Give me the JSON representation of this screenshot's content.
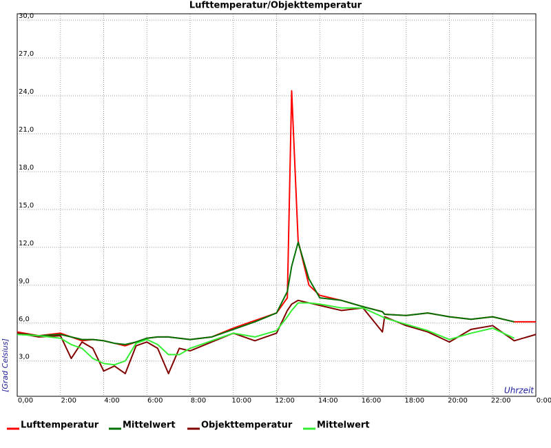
{
  "chart_data": {
    "type": "line",
    "title": "Lufttemperatur/Objekttemperatur",
    "x_label": "Uhrzeit",
    "y_label": "[Grad Celsius]",
    "x": [
      0,
      1,
      2,
      2.5,
      3,
      3.5,
      4,
      4.5,
      5,
      5.5,
      6,
      6.5,
      7,
      7.5,
      8,
      9,
      10,
      11,
      12,
      12.5,
      12.7,
      13,
      13.5,
      14,
      15,
      16,
      16.9,
      17,
      18,
      19,
      20,
      21,
      22,
      23,
      24
    ],
    "series": [
      {
        "name": "Lufttemperatur",
        "color": "#ff0000",
        "values": [
          5.3,
          5.0,
          5.2,
          4.9,
          4.6,
          4.7,
          4.6,
          4.4,
          4.2,
          4.5,
          4.8,
          4.9,
          4.9,
          4.8,
          4.7,
          4.9,
          5.6,
          6.2,
          6.8,
          8.0,
          24.4,
          12.5,
          9.0,
          8.2,
          7.8,
          7.3,
          6.9,
          6.7,
          6.6,
          6.8,
          6.5,
          6.3,
          6.5,
          6.1,
          6.1
        ]
      },
      {
        "name": "Mittelwert",
        "color": "#007000",
        "values": [
          5.2,
          5.0,
          5.1,
          4.9,
          4.7,
          4.7,
          4.6,
          4.4,
          4.3,
          4.5,
          4.8,
          4.9,
          4.9,
          4.8,
          4.7,
          4.9,
          5.5,
          6.1,
          6.8,
          8.5,
          10.5,
          12.4,
          9.5,
          8.0,
          7.8,
          7.3,
          6.9,
          6.7,
          6.6,
          6.8,
          6.5,
          6.3,
          6.5,
          6.1,
          null
        ]
      },
      {
        "name": "Objekttemperatur",
        "color": "#800000",
        "values": [
          5.2,
          4.9,
          5.0,
          3.2,
          4.5,
          4.0,
          2.2,
          2.6,
          2.0,
          4.2,
          4.5,
          4.0,
          2.0,
          4.0,
          3.8,
          4.5,
          5.2,
          4.6,
          5.2,
          7.0,
          7.5,
          7.8,
          7.6,
          7.4,
          7.0,
          7.2,
          5.3,
          6.5,
          5.8,
          5.3,
          4.5,
          5.5,
          5.8,
          4.6,
          5.1
        ]
      },
      {
        "name": "Mittelwert",
        "color": "#33ee33",
        "values": [
          5.1,
          5.0,
          4.8,
          4.3,
          4.0,
          3.2,
          2.8,
          2.7,
          3.0,
          4.4,
          4.7,
          4.3,
          3.5,
          3.5,
          4.0,
          4.6,
          5.2,
          4.9,
          5.4,
          6.5,
          7.0,
          7.6,
          7.6,
          7.5,
          7.2,
          7.2,
          6.5,
          6.4,
          5.9,
          5.4,
          4.7,
          5.2,
          5.6,
          4.8,
          null
        ]
      }
    ],
    "xlim": [
      0,
      24
    ],
    "xticks": [
      {
        "value": 0,
        "label": "0,00"
      },
      {
        "value": 2,
        "label": "2:00"
      },
      {
        "value": 4,
        "label": "4:00"
      },
      {
        "value": 6,
        "label": "6:00"
      },
      {
        "value": 8,
        "label": "8:00"
      },
      {
        "value": 10,
        "label": "10:00"
      },
      {
        "value": 12,
        "label": "12:00"
      },
      {
        "value": 14,
        "label": "14:00"
      },
      {
        "value": 16,
        "label": "16:00"
      },
      {
        "value": 18,
        "label": "18:00"
      },
      {
        "value": 20,
        "label": "20:00"
      },
      {
        "value": 22,
        "label": "22:00"
      },
      {
        "value": 24,
        "label": "0:00"
      }
    ],
    "ylim": [
      0.2,
      30.5
    ],
    "yticks": [
      {
        "value": 3,
        "label": "3,0"
      },
      {
        "value": 6,
        "label": "6,0"
      },
      {
        "value": 9,
        "label": "9,0"
      },
      {
        "value": 12,
        "label": "12,0"
      },
      {
        "value": 15,
        "label": "15,0"
      },
      {
        "value": 18,
        "label": "18,0"
      },
      {
        "value": 21,
        "label": "21,0"
      },
      {
        "value": 24,
        "label": "24,0"
      },
      {
        "value": 27,
        "label": "27,0"
      },
      {
        "value": 30,
        "label": "30,0"
      }
    ],
    "grid": true
  }
}
